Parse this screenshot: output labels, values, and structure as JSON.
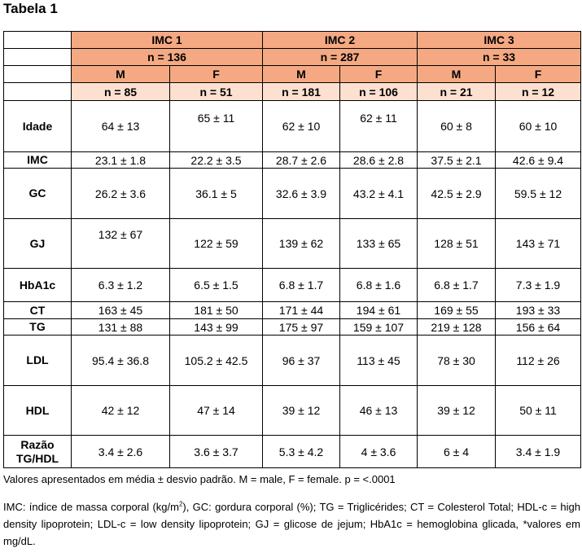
{
  "title": "Tabela 1",
  "groups": [
    {
      "label": "IMC 1",
      "n": "n = 136"
    },
    {
      "label": "IMC 2",
      "n": "n = 287"
    },
    {
      "label": "IMC 3",
      "n": "n = 33"
    }
  ],
  "sex_labels": [
    "M",
    "F",
    "M",
    "F",
    "M",
    "F"
  ],
  "sub_n": [
    "n = 85",
    "n = 51",
    "n = 181",
    "n = 106",
    "n = 21",
    "n = 12"
  ],
  "rows": [
    {
      "label": "Idade",
      "cells": [
        "64 ± 13",
        "65 ± 11",
        "62 ± 10",
        "62 ± 11",
        "60 ± 8",
        "60 ± 10"
      ]
    },
    {
      "label": "IMC",
      "cells": [
        "23.1 ± 1.8",
        "22.2 ± 3.5",
        "28.7 ± 2.6",
        "28.6 ± 2.8",
        "37.5 ± 2.1",
        "42.6 ± 9.4"
      ]
    },
    {
      "label": "GC",
      "cells": [
        "26.2 ± 3.6",
        "36.1 ± 5",
        "32.6 ± 3.9",
        "43.2 ± 4.1",
        "42.5 ± 2.9",
        "59.5 ± 12"
      ]
    },
    {
      "label": "GJ",
      "cells": [
        "132 ± 67",
        "122 ± 59",
        "139 ± 62",
        "133 ± 65",
        "128 ± 51",
        "143 ± 71"
      ]
    },
    {
      "label": "HbA1c",
      "cells": [
        "6.3 ± 1.2",
        "6.5 ± 1.5",
        "6.8 ± 1.7",
        "6.8 ± 1.6",
        "6.8 ± 1.7",
        "7.3 ± 1.9"
      ]
    },
    {
      "label": "CT",
      "cells": [
        "163 ± 45",
        "181 ± 50",
        "171 ± 44",
        "194 ± 61",
        "169 ± 55",
        "193 ± 33"
      ]
    },
    {
      "label": "TG",
      "cells": [
        "131 ± 88",
        "143 ± 99",
        "175 ± 97",
        "159 ± 107",
        "219 ± 128",
        "156 ± 64"
      ]
    },
    {
      "label": "LDL",
      "cells": [
        "95.4 ± 36.8",
        "105.2 ± 42.5",
        "96 ± 37",
        "113 ± 45",
        "78 ± 30",
        "112 ± 26"
      ]
    },
    {
      "label": "HDL",
      "cells": [
        "42 ± 12",
        "47 ± 14",
        "39 ± 12",
        "46 ± 13",
        "39 ± 12",
        "50 ± 11"
      ]
    },
    {
      "label": "Razão TG/HDL",
      "cells": [
        "3.4 ± 2.6",
        "3.6 ± 3.7",
        "5.3 ± 4.2",
        "4 ± 3.6",
        "6 ± 4",
        "3.4 ± 1.9"
      ]
    }
  ],
  "caption": "Valores apresentados em média ± desvio padrão. M = male, F = female. p = <.0001",
  "notes": {
    "part1": "IMC: índice de massa corporal (kg/m",
    "sup": "2",
    "part2": "), GC: gordura corporal (%); TG = Triglicérides; CT = Colesterol Total; HDL-c = high density lipoprotein; LDL-c = low density lipoprotein; GJ = glicose de jejum; HbA1c = hemoglobina glicada, *valores em mg/dL."
  }
}
